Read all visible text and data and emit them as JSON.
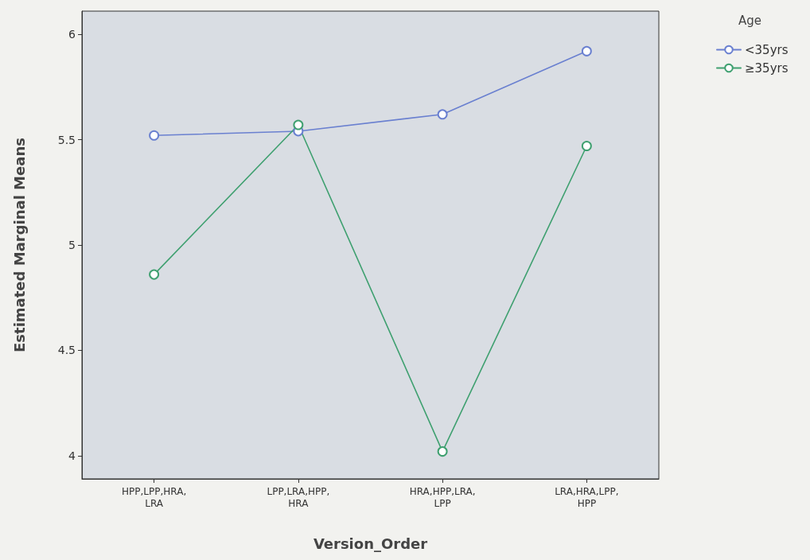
{
  "chart_data": {
    "type": "line",
    "xlabel": "Version_Order",
    "ylabel": "Estimated Marginal Means",
    "legend_title": "Age",
    "categories": [
      "HPP,LPP,HRA,\nLRA",
      "LPP,LRA,HPP,\nHRA",
      "HRA,HPP,LRA,\nLPP",
      "LRA,HRA,LPP,\nHPP"
    ],
    "series": [
      {
        "name": "<35yrs",
        "color": "#6a80d0",
        "values": [
          5.52,
          5.54,
          5.62,
          5.92
        ]
      },
      {
        "name": "≥35yrs",
        "color": "#3fa070",
        "values": [
          4.86,
          5.57,
          4.02,
          5.47
        ]
      }
    ],
    "ylim": [
      3.89,
      6.11
    ],
    "yticks": [
      4,
      4.5,
      5,
      5.5,
      6
    ],
    "grid": false,
    "legend": "top right",
    "marker": "circle",
    "line_style": "solid"
  }
}
